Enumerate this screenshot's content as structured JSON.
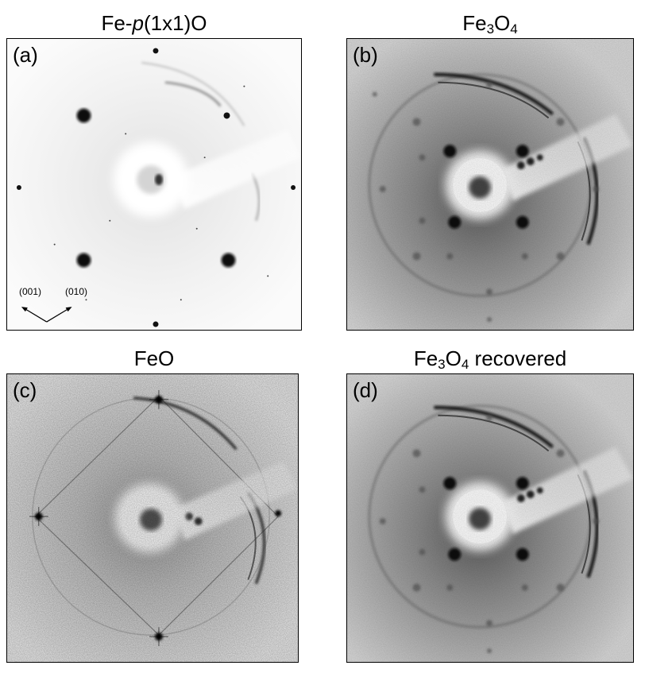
{
  "panels": [
    {
      "label": "(a)",
      "title_pre": "Fe-",
      "title_italic": "p",
      "title_post": "(1x1)O"
    },
    {
      "label": "(b)",
      "title_pre": "Fe",
      "title_sub1": "3",
      "title_mid": "O",
      "title_sub2": "4",
      "title_post": ""
    },
    {
      "label": "(c)",
      "title_pre": "FeO"
    },
    {
      "label": "(d)",
      "title_pre": "Fe",
      "title_sub1": "3",
      "title_mid": "O",
      "title_sub2": "4",
      "title_post": " recovered"
    }
  ],
  "axes": {
    "left": "(001)",
    "right": "(010)"
  }
}
